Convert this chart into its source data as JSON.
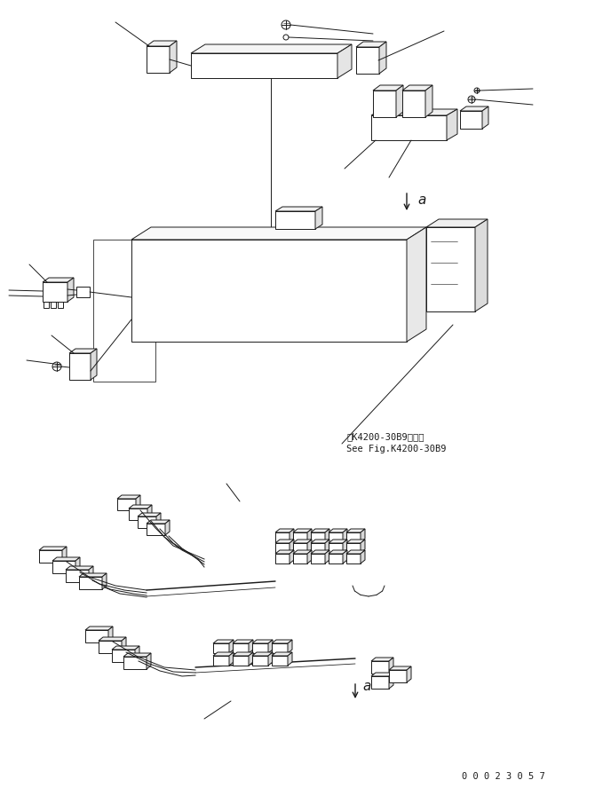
{
  "bg_color": "#ffffff",
  "lc": "#1a1a1a",
  "lw": 0.7,
  "fig_width": 6.7,
  "fig_height": 8.97,
  "dpi": 100,
  "serial": "0 0 0 2 3 0 5 7",
  "ref1": "第K4200-30B9図参照",
  "ref2": "See Fig.K4200-30B9",
  "a_label": "a"
}
